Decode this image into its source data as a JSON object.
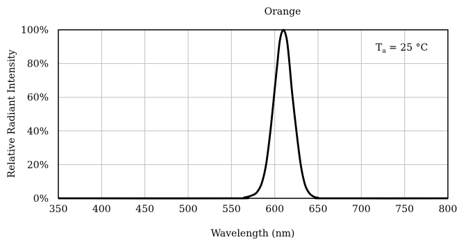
{
  "chart_data": {
    "type": "line",
    "title": "Orange",
    "xlabel": "Wavelength (nm)",
    "ylabel": "Relative Radiant Intensity",
    "xlim": [
      350,
      800
    ],
    "ylim": [
      0,
      100
    ],
    "x_ticks": [
      350,
      400,
      450,
      500,
      550,
      600,
      650,
      700,
      750,
      800
    ],
    "x_tick_labels": [
      "350",
      "400",
      "450",
      "500",
      "550",
      "600",
      "650",
      "700",
      "750",
      "800"
    ],
    "y_ticks": [
      0,
      20,
      40,
      60,
      80,
      100
    ],
    "y_tick_labels": [
      "0%",
      "20%",
      "40%",
      "60%",
      "80%",
      "100%"
    ],
    "grid": true,
    "annotation": {
      "main": "T",
      "sub": "a",
      "rest": " = 25 °C"
    },
    "series": [
      {
        "color": "#000000",
        "points": [
          [
            350,
            0
          ],
          [
            550,
            0
          ],
          [
            565,
            0.5
          ],
          [
            575,
            2
          ],
          [
            580,
            4
          ],
          [
            585,
            9
          ],
          [
            590,
            20
          ],
          [
            595,
            40
          ],
          [
            600,
            65
          ],
          [
            603,
            80
          ],
          [
            606,
            94
          ],
          [
            610,
            100
          ],
          [
            614,
            94
          ],
          [
            617,
            80
          ],
          [
            620,
            63
          ],
          [
            625,
            40
          ],
          [
            630,
            20
          ],
          [
            635,
            8
          ],
          [
            640,
            3
          ],
          [
            645,
            1
          ],
          [
            650,
            0.3
          ],
          [
            660,
            0
          ],
          [
            800,
            0
          ]
        ]
      }
    ]
  }
}
